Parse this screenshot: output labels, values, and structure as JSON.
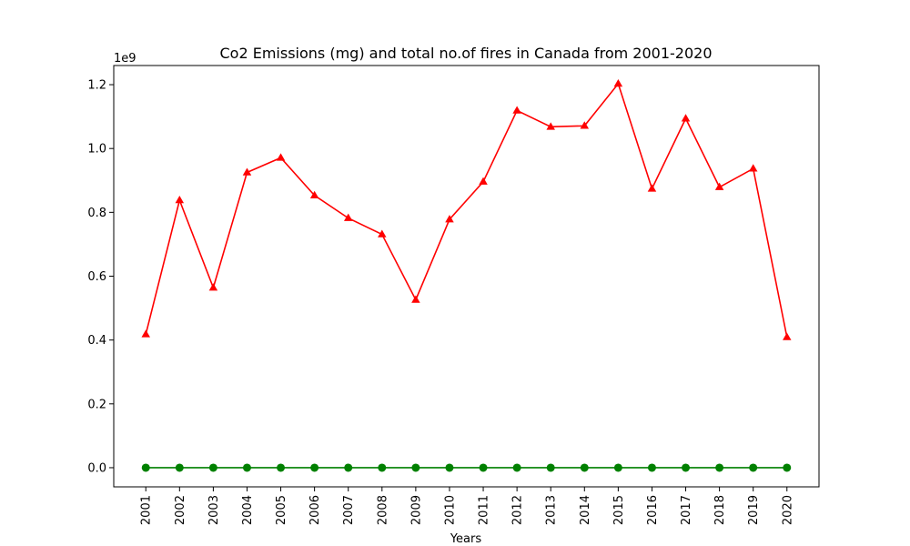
{
  "chart_data": {
    "type": "line",
    "title": "Co2 Emissions (mg) and total no.of fires in Canada from 2001-2020",
    "xlabel": "Years",
    "ylabel": "",
    "y_offset_label": "1e9",
    "y_scale": 1000000000,
    "ylim": [
      -0.06,
      1.26
    ],
    "yticks": [
      "0.0",
      "0.2",
      "0.4",
      "0.6",
      "0.8",
      "1.0",
      "1.2"
    ],
    "grid": false,
    "x": [
      "2001",
      "2002",
      "2003",
      "2004",
      "2005",
      "2006",
      "2007",
      "2008",
      "2009",
      "2010",
      "2011",
      "2012",
      "2013",
      "2014",
      "2015",
      "2016",
      "2017",
      "2018",
      "2019",
      "2020"
    ],
    "series": [
      {
        "color": "#ff0000",
        "marker": "triangle",
        "values": [
          0.418,
          0.838,
          0.564,
          0.925,
          0.971,
          0.853,
          0.782,
          0.731,
          0.526,
          0.778,
          0.896,
          1.119,
          1.068,
          1.071,
          1.203,
          0.874,
          1.094,
          0.879,
          0.937,
          0.409
        ]
      },
      {
        "color": "#008000",
        "marker": "circle",
        "values": [
          0,
          0,
          0,
          0,
          0,
          0,
          0,
          0,
          0,
          0,
          0,
          0,
          0,
          0,
          0,
          0,
          0,
          0,
          0,
          0
        ]
      }
    ]
  }
}
